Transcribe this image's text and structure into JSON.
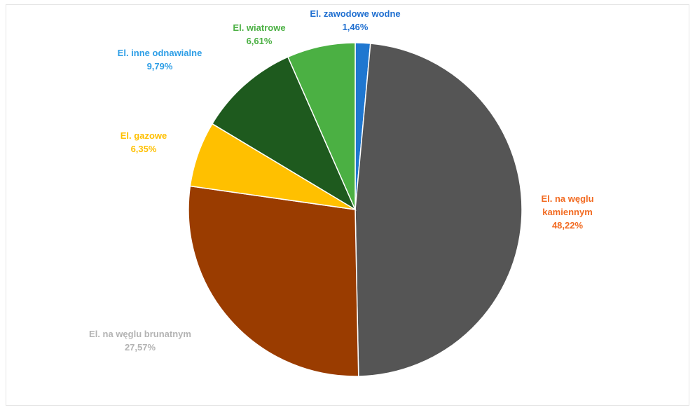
{
  "chart_data": {
    "type": "pie",
    "title": "",
    "slices": [
      {
        "label_lines": [
          "El. zawodowe wodne"
        ],
        "value": 1.46,
        "value_text": "1,46%",
        "color": "#1f77d0",
        "label_color": "#1f6fd0"
      },
      {
        "label_lines": [
          "El. na węglu",
          "kamiennym"
        ],
        "value": 48.22,
        "value_text": "48,22%",
        "color": "#555555",
        "label_color": "#f26b22"
      },
      {
        "label_lines": [
          "El. na węglu brunatnym"
        ],
        "value": 27.57,
        "value_text": "27,57%",
        "color": "#9a3c00",
        "label_color": "#b3b3b3"
      },
      {
        "label_lines": [
          "El. gazowe"
        ],
        "value": 6.35,
        "value_text": "6,35%",
        "color": "#ffc000",
        "label_color": "#ffc000"
      },
      {
        "label_lines": [
          "El. inne odnawialne"
        ],
        "value": 9.79,
        "value_text": "9,79%",
        "color": "#1e5a1e",
        "label_color": "#2e9ee6"
      },
      {
        "label_lines": [
          "El. wiatrowe"
        ],
        "value": 6.61,
        "value_text": "6,61%",
        "color": "#4bb043",
        "label_color": "#4bb043"
      }
    ],
    "start_angle_deg": 0,
    "direction": "clockwise"
  }
}
